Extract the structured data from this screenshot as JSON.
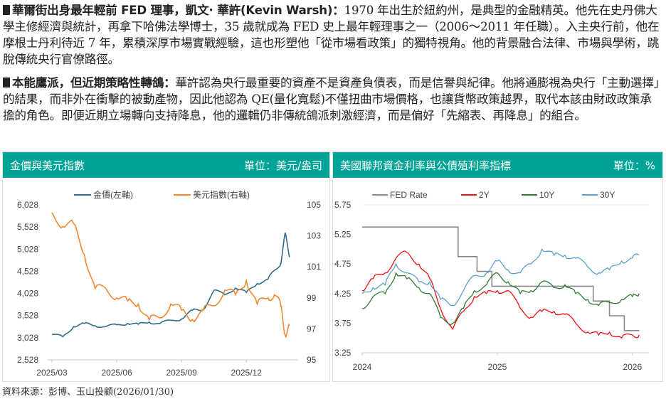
{
  "paragraphs": [
    {
      "bold": "華爾街出身最年輕前 FED 理事，凱文· 華許(Kevin Warsh)：",
      "text": "1970 年出生於紐約州，是典型的金融精英。他先在史丹佛大學主修經濟與統計，再拿下哈佛法學博士，35 歲就成為 FED 史上最年輕理事之一（2006～2011 年任職）。入主央行前，他在摩根士丹利待近 7 年，累積深厚市場實戰經驗，這也形塑他「從市場看政策」的獨特視角。他的背景融合法律、市場與學術，跳脫傳統央行官僚路徑。"
    },
    {
      "bold": "本能鷹派，但近期策略性轉鴿：",
      "text": "華許認為央行最重要的資產不是資產負債表，而是信譽與紀律。他將通膨視為央行「主動選擇」的結果，而非外在衝擊的被動產物，因此他認為 QE(量化寬鬆)不僅扭曲市場價格，也讓貨幣政策越界，取代本該由財政政策承擔的角色。即便近期立場轉向支持降息，他的邏輯仍非傳統鴿派刺激經濟，而是偏好「先縮表、再降息」的組合。"
    }
  ],
  "source": "資料來源：彭博、玉山投顧(2026/01/30)",
  "chart_data": [
    {
      "type": "line",
      "title": "金價與美元指數",
      "unit": "單位：美元/盎司",
      "x_ticks": [
        "2025/03",
        "2025/06",
        "2025/09",
        "2025/12"
      ],
      "ylim_left": [
        2528,
        6028
      ],
      "yticks_left": [
        "6,028",
        "5,528",
        "5,028",
        "4,528",
        "4,028",
        "3,528",
        "3,028",
        "2,528"
      ],
      "ylim_right": [
        95,
        105
      ],
      "yticks_right": [
        "105",
        "103",
        "101",
        "99",
        "97",
        "95"
      ],
      "x_months": [
        0,
        0.5,
        1,
        1.5,
        2,
        2.5,
        3,
        3.5,
        4,
        4.5,
        5,
        5.5,
        6,
        6.5,
        7,
        7.5,
        8,
        8.5,
        9,
        9.5,
        10,
        10.3,
        10.6,
        10.8,
        11
      ],
      "series": [
        {
          "name": "金價(左軸)",
          "color": "#2e6d8e",
          "axis": "left",
          "values": [
            3100,
            3050,
            3280,
            3350,
            3300,
            3280,
            3320,
            3350,
            3330,
            3380,
            3350,
            3420,
            3450,
            3650,
            3650,
            4100,
            4000,
            4150,
            4050,
            4250,
            4350,
            4550,
            4700,
            5400,
            4850
          ]
        },
        {
          "name": "美元指數(右軸)",
          "color": "#ee8833",
          "axis": "right",
          "values": [
            104.5,
            103.6,
            103.8,
            101.8,
            99.6,
            99.6,
            99,
            98.8,
            98.6,
            97.6,
            97.7,
            98.6,
            98.2,
            97.6,
            98.2,
            98.5,
            99.5,
            99.2,
            100.1,
            98.6,
            99,
            99.2,
            98.5,
            96.6,
            97.2
          ]
        }
      ]
    },
    {
      "type": "line",
      "title": "美國聯邦資金利率與公債殖利率指標",
      "unit": "單位：%",
      "x_ticks": [
        "2024",
        "2025",
        "2026"
      ],
      "xlim": [
        2024,
        2026.08
      ],
      "ylim": [
        3.25,
        5.75
      ],
      "yticks": [
        "5.75",
        "5.25",
        "4.75",
        "4.25",
        "3.75",
        "3.25"
      ],
      "x_years": [
        2024,
        2024.08,
        2024.17,
        2024.25,
        2024.33,
        2024.42,
        2024.5,
        2024.58,
        2024.67,
        2024.75,
        2024.83,
        2024.92,
        2025,
        2025.08,
        2025.17,
        2025.25,
        2025.33,
        2025.42,
        2025.5,
        2025.58,
        2025.67,
        2025.75,
        2025.83,
        2025.92,
        2026,
        2026.05
      ],
      "series": [
        {
          "name": "FED Rate",
          "color": "#888888",
          "step": true,
          "x": [
            2024,
            2024.71,
            2024.85,
            2024.96,
            2025.71,
            2025.83,
            2025.94,
            2026.05
          ],
          "values": [
            5.375,
            4.875,
            4.625,
            4.375,
            4.125,
            3.875,
            3.625,
            3.625
          ]
        },
        {
          "name": "2Y",
          "color": "#ee1111",
          "values": [
            4.3,
            4.5,
            4.6,
            4.85,
            4.95,
            4.75,
            4.5,
            4.0,
            3.65,
            3.95,
            4.2,
            4.25,
            4.3,
            4.3,
            4.0,
            3.85,
            3.95,
            3.95,
            3.9,
            3.75,
            3.6,
            3.55,
            3.6,
            3.5,
            3.55,
            3.55
          ]
        },
        {
          "name": "10Y",
          "color": "#2e7d32",
          "values": [
            4.0,
            4.2,
            4.25,
            4.6,
            4.5,
            4.35,
            4.25,
            3.85,
            3.75,
            4.0,
            4.3,
            4.4,
            4.6,
            4.45,
            4.25,
            4.3,
            4.45,
            4.35,
            4.4,
            4.25,
            4.15,
            4.05,
            4.1,
            4.15,
            4.2,
            4.25
          ]
        },
        {
          "name": "30Y",
          "color": "#5aa0cc",
          "values": [
            4.25,
            4.35,
            4.4,
            4.75,
            4.6,
            4.45,
            4.45,
            4.15,
            4.05,
            4.3,
            4.55,
            4.6,
            4.8,
            4.65,
            4.6,
            4.75,
            5.0,
            4.9,
            4.9,
            4.85,
            4.7,
            4.6,
            4.65,
            4.8,
            4.85,
            4.9
          ]
        }
      ]
    }
  ]
}
